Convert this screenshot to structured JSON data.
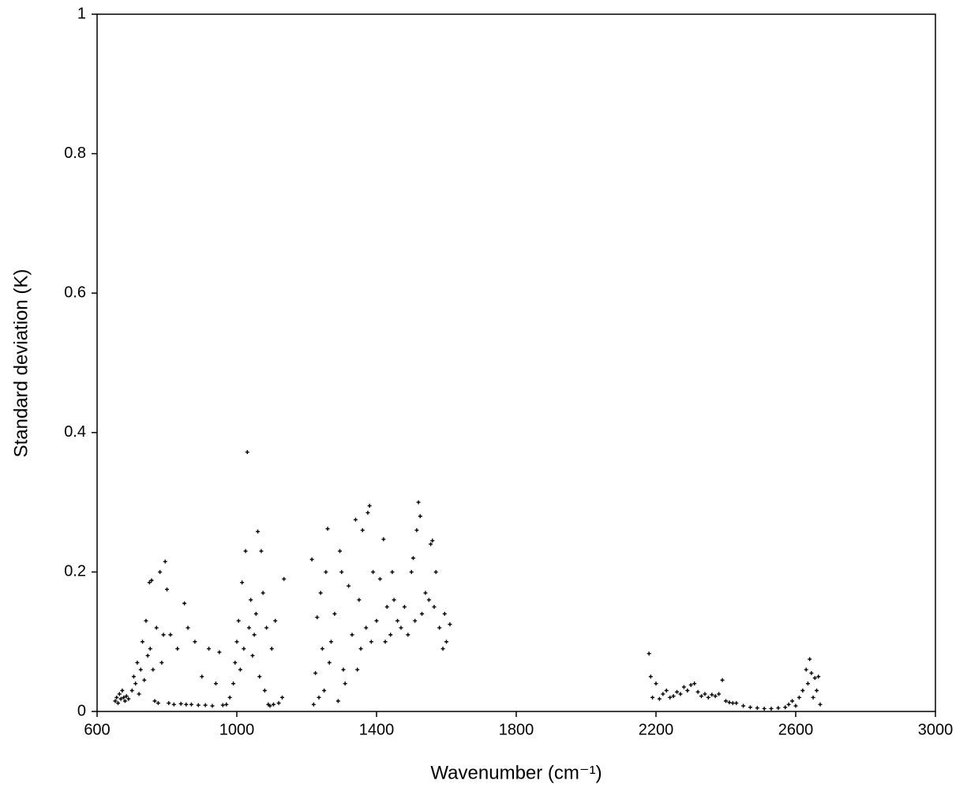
{
  "chart_data": {
    "type": "scatter",
    "x_label": "Wavenumber (cm⁻¹)",
    "y_label": "Standard deviation (K)",
    "xlim": [
      600,
      3000
    ],
    "xticks": [
      600,
      1000,
      1400,
      1800,
      2200,
      2600,
      3000
    ],
    "ylim": [
      0,
      1
    ],
    "yticks": [
      0,
      0.2,
      0.4,
      0.6,
      0.8,
      1
    ],
    "series": [
      {
        "color": "#000000",
        "x": [
          652,
          656,
          660,
          664,
          668,
          672,
          676,
          680,
          684,
          690,
          700,
          705,
          710,
          715,
          720,
          725,
          730,
          735,
          740,
          745,
          750,
          752,
          756,
          760,
          765,
          770,
          775,
          780,
          785,
          790,
          795,
          800,
          805,
          810,
          820,
          830,
          840,
          850,
          855,
          860,
          870,
          880,
          890,
          900,
          910,
          920,
          930,
          940,
          950,
          960,
          970,
          980,
          990,
          995,
          1000,
          1005,
          1010,
          1015,
          1020,
          1025,
          1030,
          1035,
          1040,
          1045,
          1050,
          1055,
          1060,
          1065,
          1070,
          1075,
          1080,
          1085,
          1090,
          1095,
          1100,
          1105,
          1110,
          1120,
          1130,
          1135,
          1215,
          1220,
          1225,
          1230,
          1235,
          1240,
          1245,
          1250,
          1255,
          1260,
          1265,
          1270,
          1280,
          1290,
          1295,
          1300,
          1305,
          1310,
          1320,
          1330,
          1340,
          1345,
          1350,
          1355,
          1360,
          1370,
          1375,
          1380,
          1385,
          1390,
          1400,
          1410,
          1420,
          1425,
          1430,
          1440,
          1445,
          1450,
          1460,
          1470,
          1480,
          1490,
          1500,
          1505,
          1510,
          1515,
          1520,
          1525,
          1530,
          1540,
          1550,
          1555,
          1560,
          1565,
          1570,
          1580,
          1590,
          1595,
          1600,
          1610,
          2180,
          2185,
          2190,
          2200,
          2210,
          2220,
          2230,
          2240,
          2250,
          2260,
          2270,
          2280,
          2290,
          2300,
          2310,
          2320,
          2330,
          2340,
          2350,
          2360,
          2370,
          2380,
          2390,
          2400,
          2410,
          2420,
          2430,
          2450,
          2470,
          2490,
          2510,
          2530,
          2550,
          2570,
          2580,
          2590,
          2600,
          2610,
          2620,
          2630,
          2635,
          2640,
          2645,
          2650,
          2655,
          2660,
          2665,
          2670
        ],
        "values": [
          0.015,
          0.02,
          0.012,
          0.025,
          0.018,
          0.03,
          0.02,
          0.015,
          0.022,
          0.018,
          0.03,
          0.05,
          0.04,
          0.07,
          0.025,
          0.06,
          0.1,
          0.045,
          0.13,
          0.08,
          0.185,
          0.09,
          0.188,
          0.06,
          0.015,
          0.12,
          0.012,
          0.2,
          0.07,
          0.11,
          0.215,
          0.175,
          0.012,
          0.11,
          0.01,
          0.09,
          0.011,
          0.155,
          0.01,
          0.12,
          0.01,
          0.1,
          0.009,
          0.05,
          0.009,
          0.09,
          0.008,
          0.04,
          0.085,
          0.009,
          0.01,
          0.02,
          0.04,
          0.07,
          0.1,
          0.13,
          0.06,
          0.185,
          0.09,
          0.23,
          0.372,
          0.12,
          0.16,
          0.08,
          0.11,
          0.14,
          0.258,
          0.05,
          0.23,
          0.17,
          0.03,
          0.12,
          0.01,
          0.008,
          0.09,
          0.01,
          0.13,
          0.012,
          0.02,
          0.19,
          0.218,
          0.01,
          0.055,
          0.135,
          0.02,
          0.17,
          0.09,
          0.03,
          0.2,
          0.262,
          0.07,
          0.1,
          0.14,
          0.015,
          0.23,
          0.2,
          0.06,
          0.04,
          0.18,
          0.11,
          0.275,
          0.06,
          0.16,
          0.09,
          0.26,
          0.12,
          0.285,
          0.295,
          0.1,
          0.2,
          0.13,
          0.19,
          0.247,
          0.1,
          0.15,
          0.11,
          0.2,
          0.16,
          0.13,
          0.12,
          0.15,
          0.11,
          0.2,
          0.22,
          0.13,
          0.26,
          0.3,
          0.28,
          0.14,
          0.17,
          0.16,
          0.24,
          0.245,
          0.15,
          0.2,
          0.12,
          0.09,
          0.14,
          0.1,
          0.125,
          0.083,
          0.05,
          0.02,
          0.04,
          0.018,
          0.025,
          0.03,
          0.02,
          0.022,
          0.028,
          0.025,
          0.035,
          0.03,
          0.038,
          0.04,
          0.028,
          0.022,
          0.025,
          0.02,
          0.024,
          0.022,
          0.025,
          0.045,
          0.015,
          0.013,
          0.012,
          0.012,
          0.008,
          0.006,
          0.005,
          0.004,
          0.004,
          0.005,
          0.006,
          0.01,
          0.015,
          0.008,
          0.02,
          0.03,
          0.06,
          0.04,
          0.075,
          0.055,
          0.02,
          0.048,
          0.03,
          0.05,
          0.01
        ]
      }
    ]
  }
}
